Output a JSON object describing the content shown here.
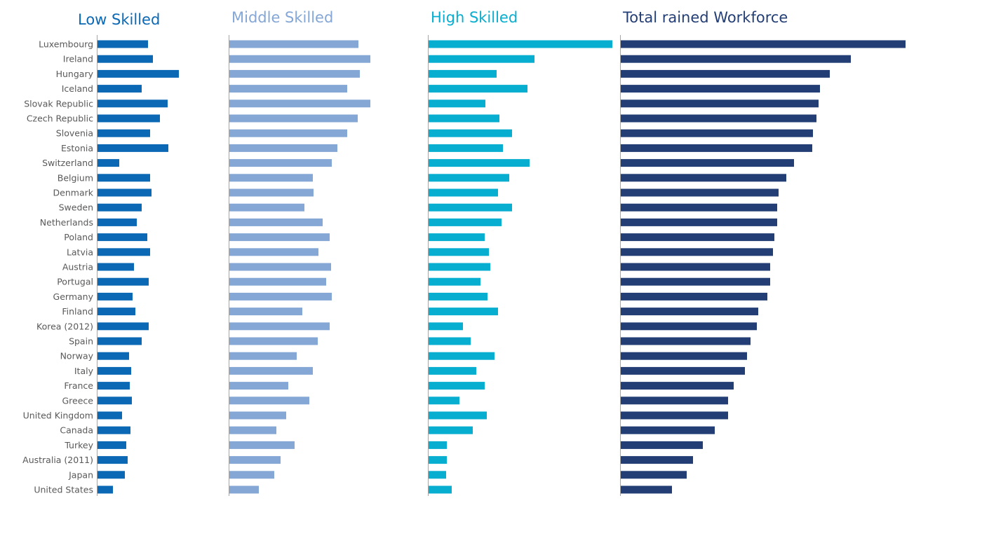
{
  "chart_data": {
    "type": "bar",
    "orientation": "horizontal",
    "categories": [
      "Luxembourg",
      "Ireland",
      "Hungary",
      "Iceland",
      "Slovak Republic",
      "Czech Republic",
      "Slovenia",
      "Estonia",
      "Switzerland",
      "Belgium",
      "Denmark",
      "Sweden",
      "Netherlands",
      "Poland",
      "Latvia",
      "Austria",
      "Portugal",
      "Germany",
      "Finland",
      "Korea (2012)",
      "Spain",
      "Norway",
      "Italy",
      "France",
      "Greece",
      "United Kingdom",
      "Canada",
      "Turkey",
      "Australia (2011)",
      "Japan",
      "United States"
    ],
    "panels": [
      {
        "title": "Low Skilled",
        "color": "#0a68b4",
        "values": [
          72,
          79,
          116,
          63,
          100,
          89,
          75,
          101,
          31,
          75,
          77,
          63,
          56,
          71,
          75,
          52,
          73,
          50,
          54,
          73,
          63,
          45,
          48,
          46,
          49,
          35,
          47,
          41,
          43,
          39,
          22
        ]
      },
      {
        "title": "Middle Skilled",
        "color": "#84a7d6",
        "values": [
          184,
          201,
          186,
          168,
          201,
          183,
          168,
          154,
          146,
          119,
          120,
          107,
          133,
          143,
          127,
          145,
          138,
          146,
          104,
          143,
          126,
          96,
          119,
          84,
          114,
          81,
          67,
          93,
          73,
          64,
          42
        ]
      },
      {
        "title": "High Skilled",
        "color": "#07aed0",
        "values": [
          262,
          151,
          97,
          141,
          81,
          101,
          119,
          106,
          144,
          115,
          99,
          119,
          104,
          80,
          86,
          88,
          74,
          84,
          99,
          49,
          60,
          94,
          68,
          80,
          44,
          83,
          63,
          26,
          26,
          25,
          33
        ]
      },
      {
        "title": "Total rained Workforce",
        "color": "#233e75",
        "values": [
          406,
          328,
          298,
          284,
          282,
          279,
          274,
          273,
          247,
          236,
          225,
          223,
          223,
          219,
          217,
          213,
          213,
          209,
          196,
          194,
          185,
          180,
          177,
          161,
          153,
          153,
          134,
          117,
          103,
          94,
          73
        ]
      }
    ],
    "xlabel": "",
    "ylabel": "",
    "grid": false,
    "legend": "none"
  }
}
